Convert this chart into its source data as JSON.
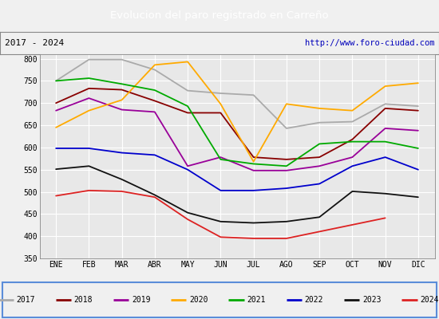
{
  "title": "Evolucion del paro registrado en Carreño",
  "subtitle_left": "2017 - 2024",
  "subtitle_right": "http://www.foro-ciudad.com",
  "months": [
    "ENE",
    "FEB",
    "MAR",
    "ABR",
    "MAY",
    "JUN",
    "JUL",
    "AGO",
    "SEP",
    "OCT",
    "NOV",
    "DIC"
  ],
  "ylim": [
    350,
    810
  ],
  "yticks": [
    350,
    400,
    450,
    500,
    550,
    600,
    650,
    700,
    750,
    800
  ],
  "series": {
    "2017": {
      "color": "#aaaaaa",
      "values": [
        750,
        798,
        798,
        775,
        728,
        722,
        718,
        643,
        656,
        658,
        698,
        693
      ]
    },
    "2018": {
      "color": "#880000",
      "values": [
        700,
        733,
        730,
        705,
        678,
        678,
        578,
        573,
        578,
        618,
        688,
        683
      ]
    },
    "2019": {
      "color": "#990099",
      "values": [
        683,
        711,
        685,
        680,
        558,
        578,
        548,
        548,
        558,
        578,
        643,
        638
      ]
    },
    "2020": {
      "color": "#ffaa00",
      "values": [
        645,
        683,
        707,
        786,
        793,
        698,
        568,
        698,
        688,
        683,
        738,
        745
      ]
    },
    "2021": {
      "color": "#00aa00",
      "values": [
        750,
        756,
        743,
        729,
        693,
        573,
        563,
        558,
        608,
        613,
        613,
        598
      ]
    },
    "2022": {
      "color": "#0000cc",
      "values": [
        598,
        598,
        588,
        583,
        550,
        503,
        503,
        508,
        518,
        558,
        578,
        550
      ]
    },
    "2023": {
      "color": "#111111",
      "values": [
        551,
        558,
        528,
        493,
        453,
        433,
        430,
        433,
        443,
        501,
        496,
        488
      ]
    },
    "2024": {
      "color": "#dd2222",
      "values": [
        491,
        503,
        501,
        488,
        438,
        398,
        395,
        395,
        null,
        null,
        441,
        null
      ]
    }
  },
  "title_bg": "#5b8dd9",
  "title_color": "white",
  "header_bg": "#f0f0f0",
  "plot_bg": "#e8e8e8",
  "grid_color": "#ffffff",
  "legend_border_color": "#5b8dd9",
  "outer_bg": "#f0f0f0"
}
